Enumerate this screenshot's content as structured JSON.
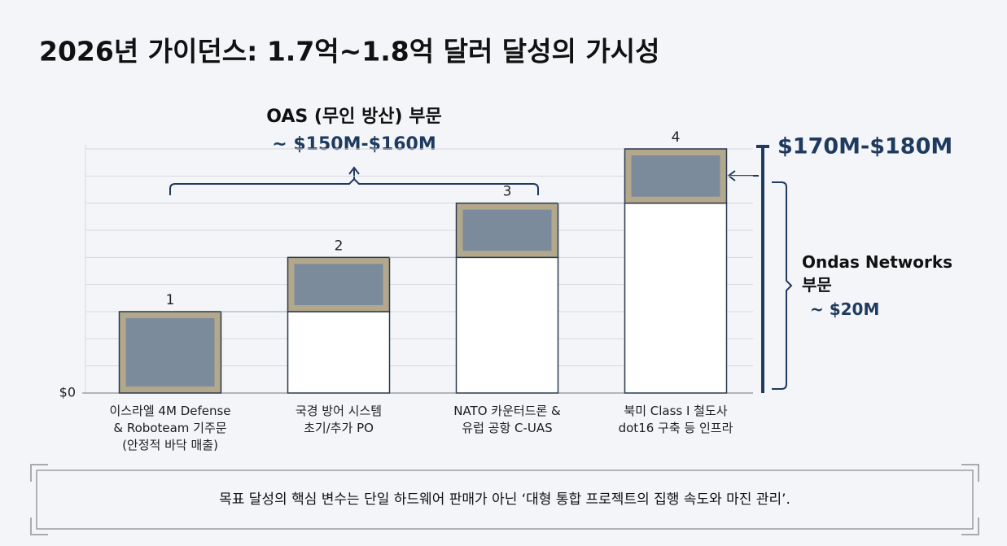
{
  "title": "2026년 가이던스: 1.7억~1.8억 달러 달성의 가시성",
  "chart_data": {
    "type": "waterfall",
    "categories": [
      "이스라엘 4M Defense\n& Roboteam 기주문\n(안정적 바닥 매출)",
      "국경 방어 시스템\n초기/추가 PO",
      "NATO 카운터드론 &\n유럽 공항 C-UAS",
      "북미 Class I 철도사\ndot16 구축 등 인프라"
    ],
    "step_labels": [
      "1",
      "2",
      "3",
      "4"
    ],
    "values": [
      3,
      2,
      2,
      2
    ],
    "color": "#7b8b9b",
    "border_color": "#b3a88c",
    "ylim": [
      0,
      9.15
    ],
    "yticks": [
      {
        "value": 0,
        "label": "$0"
      }
    ],
    "grid": true,
    "grid_lines": [
      1,
      2,
      3,
      4,
      5,
      6,
      7,
      8,
      9
    ],
    "oas_label": "OAS (무인 방산) 부문",
    "oas_value": "~ $150M-$160M",
    "total_value": "$170M-$180M",
    "ondas_label": "Ondas Networks\n부문",
    "ondas_value": "~ $20M"
  },
  "footer": "목표 달성의 핵심 변수는 단일 하드웨어 판매가 아닌 ‘대형 통합 프로젝트의 집행 속도와 마진 관리’."
}
